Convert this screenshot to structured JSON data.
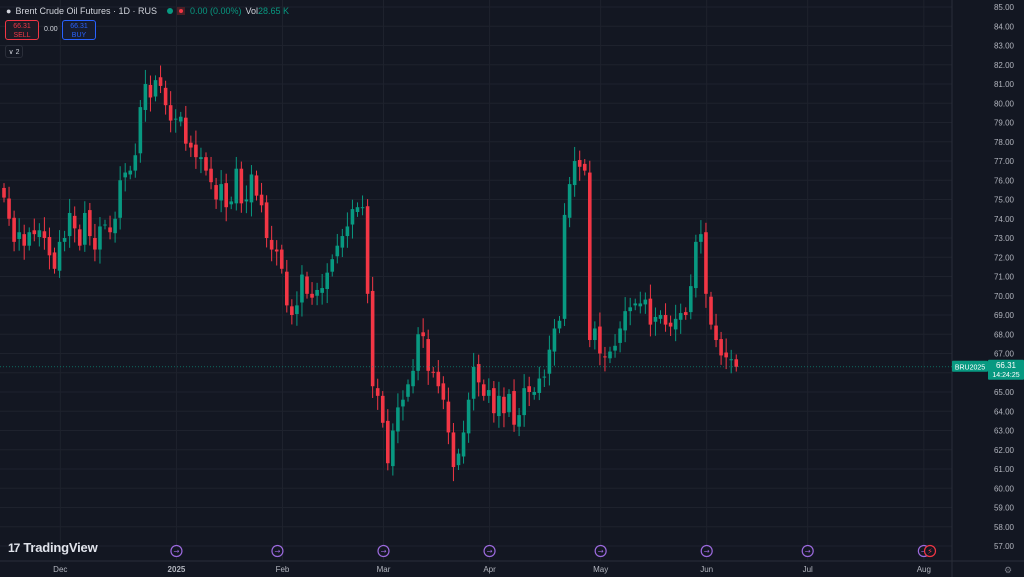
{
  "header": {
    "symbol_title": "Brent Crude Oil Futures · 1D · RUS",
    "change": "0.00 (0.00%)",
    "volume_label": "Vol",
    "volume_value": "28.65 K",
    "sell_price": "66.31",
    "sell_label": "SELL",
    "spread": "0.00",
    "buy_price": "66.31",
    "buy_label": "BUY",
    "indicators_count": "2"
  },
  "branding": {
    "logo_text": "TradingView"
  },
  "colors": {
    "background": "#131722",
    "up": "#089981",
    "down": "#f23645",
    "grid": "#1e222d",
    "axis_text": "#b2b5be"
  },
  "chart_data": {
    "type": "candlestick",
    "title": "Brent Crude Oil Futures · 1D · RUS",
    "ylim": [
      57,
      85
    ],
    "yticks": [
      "57.00",
      "58.00",
      "59.00",
      "60.00",
      "61.00",
      "62.00",
      "63.00",
      "64.00",
      "65.00",
      "66.00",
      "67.00",
      "68.00",
      "69.00",
      "70.00",
      "71.00",
      "72.00",
      "73.00",
      "74.00",
      "75.00",
      "76.00",
      "77.00",
      "78.00",
      "79.00",
      "80.00",
      "81.00",
      "82.00",
      "83.00",
      "84.00",
      "85.00"
    ],
    "xticks": [
      {
        "label": "Dec",
        "index": 6
      },
      {
        "label": "2025",
        "index": 29
      },
      {
        "label": "Feb",
        "index": 50
      },
      {
        "label": "Mar",
        "index": 70
      },
      {
        "label": "Apr",
        "index": 91
      },
      {
        "label": "May",
        "index": 113
      },
      {
        "label": "Jun",
        "index": 134
      },
      {
        "label": "Jul",
        "index": 154
      },
      {
        "label": "Aug",
        "index": 177
      }
    ],
    "event_markers": [
      29,
      49,
      70,
      91,
      113,
      134,
      154,
      177
    ],
    "last_price": {
      "symbol": "BRU2025",
      "price": "66.31",
      "countdown": "14:24:25",
      "value": 66.31
    },
    "grid": true,
    "closes": [
      75.1,
      74.0,
      72.8,
      73.3,
      72.6,
      73.3,
      73.2,
      73.4,
      73.0,
      72.1,
      71.4,
      72.8,
      73.0,
      74.3,
      73.5,
      72.6,
      74.3,
      73.1,
      72.4,
      73.6,
      73.7,
      73.3,
      74.0,
      76.0,
      76.4,
      76.5,
      77.3,
      79.8,
      81.0,
      80.3,
      81.2,
      80.9,
      79.9,
      79.1,
      79.2,
      79.3,
      77.9,
      77.7,
      77.2,
      77.2,
      76.5,
      75.9,
      75.0,
      75.8,
      74.6,
      74.9,
      76.6,
      74.8,
      75.0,
      76.3,
      75.2,
      74.7,
      73.0,
      72.4,
      72.3,
      71.4,
      69.5,
      69.0,
      69.5,
      71.1,
      70.1,
      69.9,
      70.3,
      70.4,
      71.2,
      71.9,
      72.6,
      73.1,
      73.6,
      74.5,
      74.6,
      74.6,
      70.1,
      65.3,
      64.8,
      63.4,
      61.3,
      63.0,
      64.2,
      64.6,
      65.4,
      66.1,
      68.0,
      67.9,
      66.1,
      66.0,
      65.3,
      64.6,
      62.9,
      61.1,
      61.8,
      62.9,
      64.6,
      66.3,
      65.5,
      64.8,
      65.1,
      63.9,
      64.8,
      63.9,
      64.9,
      63.3,
      63.8,
      65.2,
      65.0,
      65.0,
      65.7,
      65.8,
      67.2,
      68.3,
      68.7,
      74.2,
      75.8,
      77.0,
      76.7,
      76.5,
      67.7,
      68.3,
      67.0,
      66.8,
      67.1,
      67.4,
      68.3,
      69.2,
      69.4,
      69.6,
      69.6,
      69.8,
      68.5,
      68.9,
      69.0,
      68.5,
      68.4,
      68.8,
      69.1,
      69.0,
      70.5,
      72.8,
      73.2,
      70.1,
      68.5,
      67.7,
      66.9,
      66.8,
      66.7,
      66.31
    ],
    "xlabel": "",
    "ylabel": ""
  }
}
